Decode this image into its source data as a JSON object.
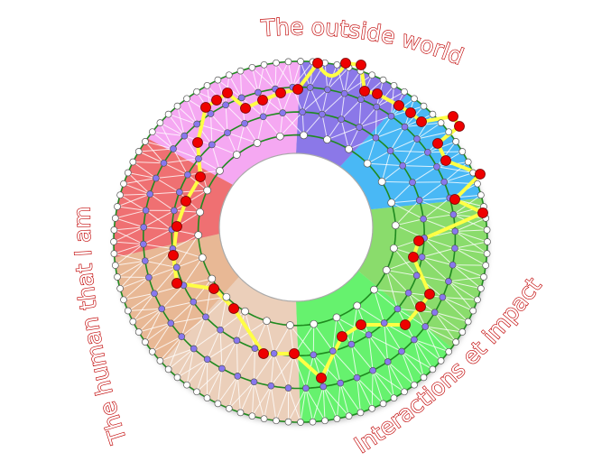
{
  "labels": {
    "top": "The outside world",
    "left": "The human that I am",
    "right": "Interactions et impact"
  },
  "colors": {
    "sectors": [
      "#8b78e8",
      "#48b8f5",
      "#8adc6c",
      "#66f26e",
      "#ebcfba",
      "#e8b895",
      "#ef6f72",
      "#f5a8f2"
    ],
    "ring_line": "#1f8a1f",
    "path": "#ffff44",
    "path_node": "#ee0000",
    "mid_node": "#8877ee",
    "label": "#c00000"
  }
}
